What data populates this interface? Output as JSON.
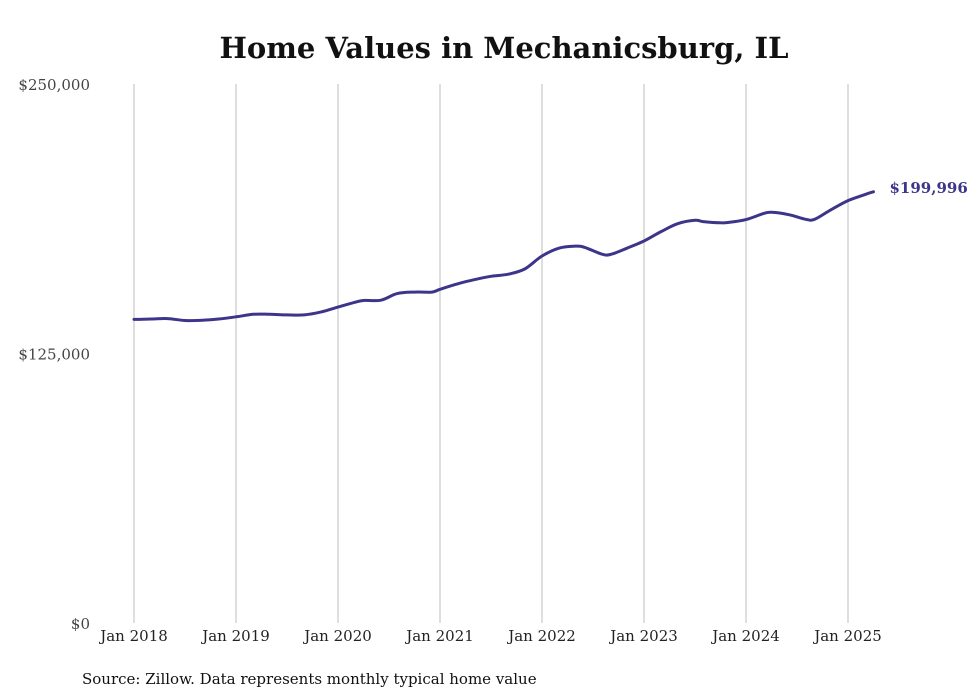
{
  "chart_data": {
    "type": "line",
    "title": "Home Values in Mechanicsburg, IL",
    "xlabel": "",
    "ylabel": "",
    "ylim": [
      0,
      250000
    ],
    "yticks": [
      0,
      125000,
      250000
    ],
    "ytick_labels": [
      "$0",
      "$125,000",
      "$250,000"
    ],
    "xticks": [
      2018,
      2019,
      2020,
      2021,
      2022,
      2023,
      2024,
      2025
    ],
    "xtick_labels": [
      "Jan 2018",
      "Jan 2019",
      "Jan 2020",
      "Jan 2021",
      "Jan 2022",
      "Jan 2023",
      "Jan 2024",
      "Jan 2025"
    ],
    "grid": "vertical",
    "series": [
      {
        "color": "#3d3589",
        "x": [
          2018.0,
          2018.17,
          2018.33,
          2018.5,
          2018.67,
          2018.83,
          2019.0,
          2019.17,
          2019.33,
          2019.5,
          2019.67,
          2019.83,
          2020.0,
          2020.17,
          2020.25,
          2020.42,
          2020.58,
          2020.75,
          2020.92,
          2021.0,
          2021.17,
          2021.33,
          2021.5,
          2021.67,
          2021.83,
          2022.0,
          2022.17,
          2022.33,
          2022.42,
          2022.58,
          2022.67,
          2022.83,
          2023.0,
          2023.17,
          2023.33,
          2023.5,
          2023.58,
          2023.75,
          2023.83,
          2024.0,
          2024.17,
          2024.25,
          2024.42,
          2024.58,
          2024.67,
          2024.83,
          2025.0,
          2025.17,
          2025.25
        ],
        "y": [
          140800,
          141000,
          141200,
          140300,
          140400,
          141000,
          142000,
          143200,
          143200,
          142900,
          142900,
          144200,
          146500,
          148800,
          149600,
          149700,
          152800,
          153500,
          153500,
          154800,
          157300,
          159200,
          160800,
          161800,
          164200,
          170200,
          173900,
          174800,
          174200,
          171200,
          170900,
          173800,
          177200,
          181600,
          185200,
          186800,
          186200,
          185600,
          185800,
          187100,
          189900,
          190500,
          189400,
          187300,
          187200,
          191600,
          195900,
          198800,
          199996
        ]
      }
    ],
    "end_label": "$199,996",
    "source": "Source: Zillow. Data represents monthly typical home value"
  }
}
